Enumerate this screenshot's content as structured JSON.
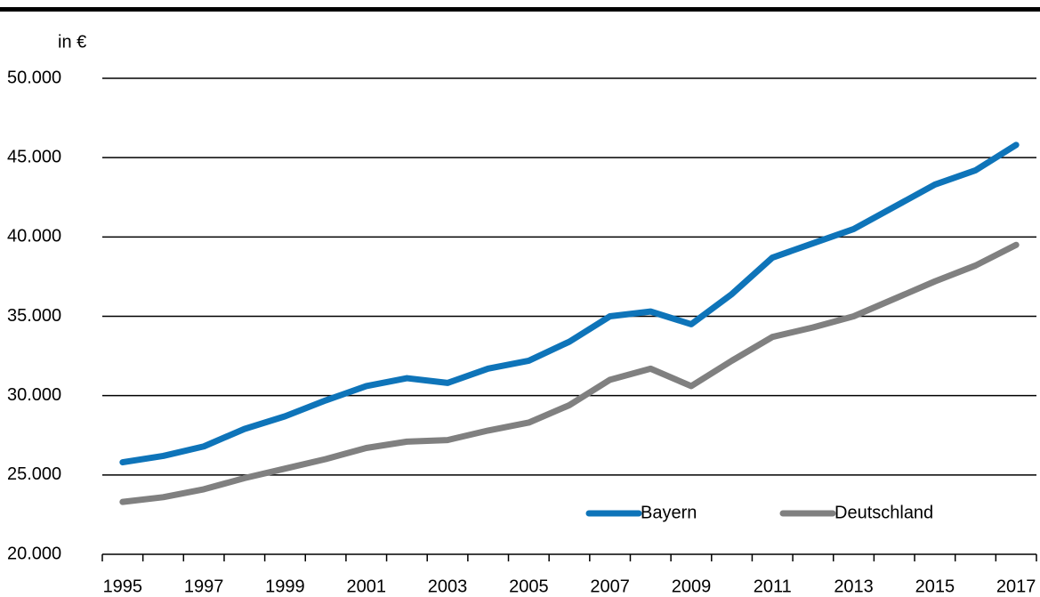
{
  "chart_data": {
    "type": "line",
    "ylabel": "in €",
    "categories": [
      "1995",
      null,
      "1997",
      null,
      "1999",
      null,
      "2001",
      null,
      "2003",
      null,
      "2005",
      null,
      "2007",
      null,
      "2009",
      null,
      "2011",
      null,
      "2013",
      null,
      "2015",
      null,
      "2017"
    ],
    "series": [
      {
        "name": "Bayern",
        "color": "#0e74b9",
        "values": [
          25800,
          26200,
          26800,
          27900,
          28700,
          29700,
          30600,
          31100,
          30800,
          31700,
          32200,
          33400,
          35000,
          35300,
          34500,
          36400,
          38700,
          39600,
          40500,
          41900,
          43300,
          44200,
          45800
        ]
      },
      {
        "name": "Deutschland",
        "color": "#808080",
        "values": [
          23300,
          23600,
          24100,
          24800,
          25400,
          26000,
          26700,
          27100,
          27200,
          27800,
          28300,
          29400,
          31000,
          31700,
          30600,
          32200,
          33700,
          34300,
          35000,
          36100,
          37200,
          38200,
          39500
        ]
      }
    ],
    "ylim": [
      20000,
      50000
    ],
    "yticks": [
      {
        "value": 20000,
        "label": "20.000"
      },
      {
        "value": 25000,
        "label": "25.000"
      },
      {
        "value": 30000,
        "label": "30.000"
      },
      {
        "value": 35000,
        "label": "35.000"
      },
      {
        "value": 40000,
        "label": "40.000"
      },
      {
        "value": 45000,
        "label": "45.000"
      },
      {
        "value": 50000,
        "label": "50.000"
      }
    ],
    "grid": true,
    "legend": "lower right"
  }
}
